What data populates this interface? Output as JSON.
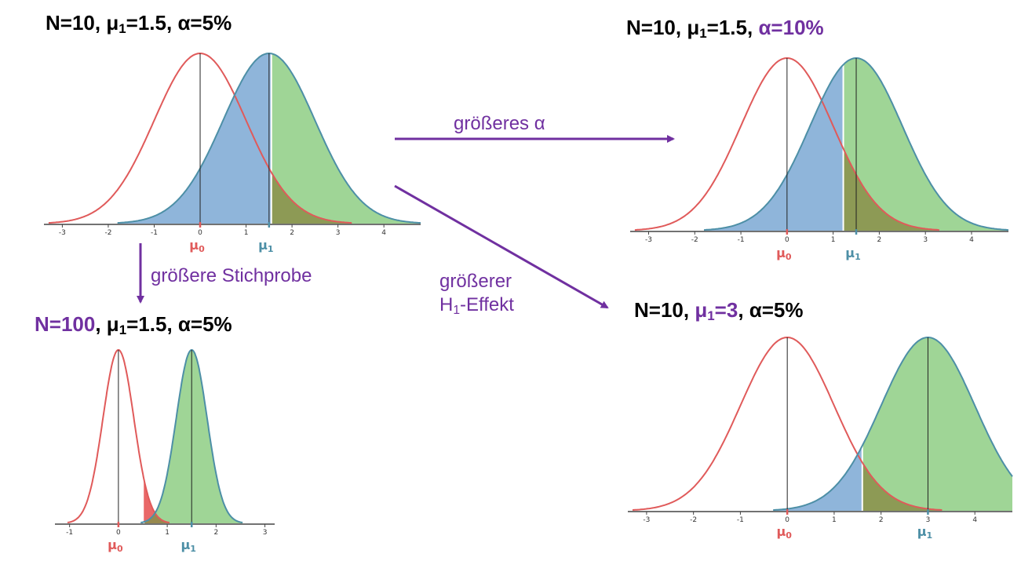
{
  "colors": {
    "h0": "#e05a5a",
    "h1_stroke": "#4d8fa6",
    "beta_fill": "#8fb5da",
    "power_fill": "#9fd596",
    "overlap_fill": "#8a8f4a",
    "alpha_fill": "#e86060",
    "accent": "#7030a0"
  },
  "labels": {
    "mu0": "μ",
    "mu0_sub": "0",
    "mu1": "μ",
    "mu1_sub": "1"
  },
  "arrows": {
    "larger_alpha": {
      "text_a": "größeres ",
      "text_b": "α"
    },
    "larger_sample": "größere Stichprobe",
    "larger_effect_line1": "größerer",
    "larger_effect_line2_a": "H",
    "larger_effect_line2_sub": "1",
    "larger_effect_line2_b": "-Effekt"
  },
  "panels": {
    "top_left": {
      "title": {
        "n": "N=10, ",
        "mu_a": "μ",
        "mu_sub": "1",
        "mu_b": "=1.5, ",
        "alpha": "α=5%"
      }
    },
    "top_right": {
      "title": {
        "n": "N=10, ",
        "mu_a": "μ",
        "mu_sub": "1",
        "mu_b": "=1.5, ",
        "alpha": "α=10%"
      }
    },
    "bottom_left": {
      "title": {
        "n": "N=100",
        "sep": ", ",
        "mu_a": "μ",
        "mu_sub": "1",
        "mu_b": "=1.5, ",
        "alpha": "α=5%"
      }
    },
    "bottom_right": {
      "title": {
        "n": "N=10, ",
        "mu_a": "μ",
        "mu_sub": "1",
        "mu_b": "=3",
        "sep": ", ",
        "alpha": "α=5%"
      }
    }
  },
  "chart_data": [
    {
      "type": "area",
      "id": "top_left",
      "n": 10,
      "mu0": 0,
      "mu1": 1.5,
      "sd": 1,
      "alpha": 0.05,
      "critical": 1.55,
      "xlim": [
        -3.4,
        4.8
      ],
      "ticks": [
        -3,
        -2,
        -1,
        0,
        1,
        2,
        3,
        4
      ]
    },
    {
      "type": "area",
      "id": "top_right",
      "n": 10,
      "mu0": 0,
      "mu1": 1.5,
      "sd": 1,
      "alpha": 0.1,
      "critical": 1.22,
      "xlim": [
        -3.4,
        4.8
      ],
      "ticks": [
        -3,
        -2,
        -1,
        0,
        1,
        2,
        3,
        4
      ]
    },
    {
      "type": "area",
      "id": "bottom_left",
      "n": 100,
      "mu0": 0,
      "mu1": 1.5,
      "sd": 0.316,
      "alpha": 0.05,
      "critical": 0.52,
      "xlim": [
        -1.3,
        3.2
      ],
      "ticks": [
        -1,
        0,
        1,
        2,
        3
      ]
    },
    {
      "type": "area",
      "id": "bottom_right",
      "n": 10,
      "mu0": 0,
      "mu1": 3,
      "sd": 1,
      "alpha": 0.05,
      "critical": 1.6,
      "xlim": [
        -3.4,
        4.8
      ],
      "ticks": [
        -3,
        -2,
        -1,
        0,
        1,
        2,
        3,
        4
      ]
    }
  ]
}
